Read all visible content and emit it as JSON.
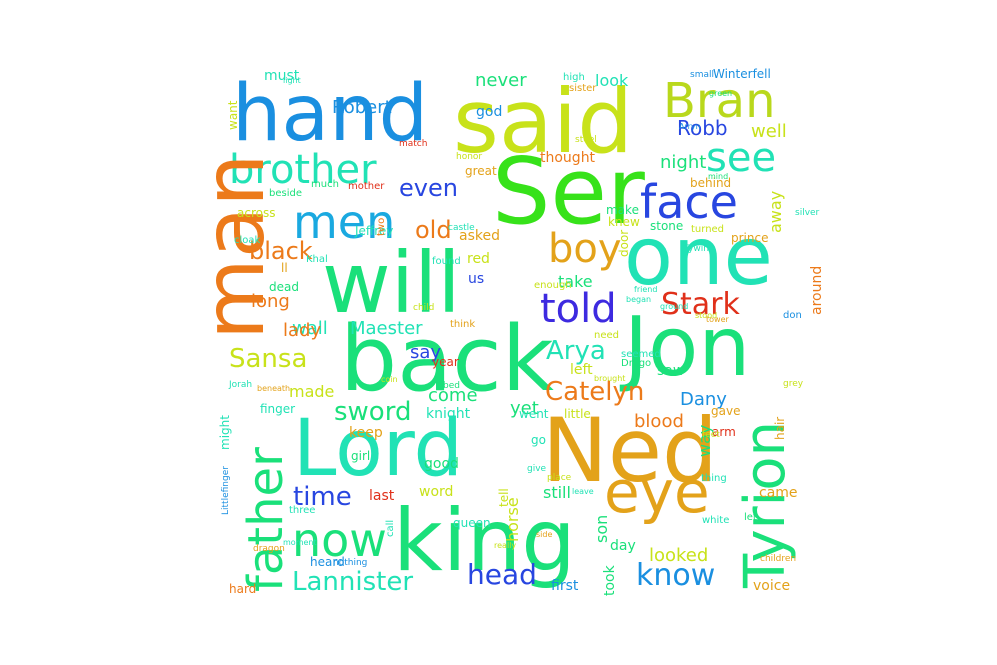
{
  "words": [
    {
      "text": "hand",
      "color": "#1a8fe0"
    },
    {
      "text": "said",
      "color": "#c8e21a"
    },
    {
      "text": "Bran",
      "color": "#b9d81c"
    },
    {
      "text": "Ser",
      "color": "#37e21a"
    },
    {
      "text": "brother",
      "color": "#21e2b5"
    },
    {
      "text": "see",
      "color": "#21e2b5"
    },
    {
      "text": "face",
      "color": "#2846e0"
    },
    {
      "text": "men",
      "color": "#1aa9e0"
    },
    {
      "text": "man",
      "color": "#ec7a1a"
    },
    {
      "text": "one",
      "color": "#21e2b5"
    },
    {
      "text": "boy",
      "color": "#e3a21a"
    },
    {
      "text": "will",
      "color": "#1ae07a"
    },
    {
      "text": "told",
      "color": "#3d2ae0"
    },
    {
      "text": "Jon",
      "color": "#1ae07a"
    },
    {
      "text": "back",
      "color": "#1ae07a"
    },
    {
      "text": "Stark",
      "color": "#e0301a"
    },
    {
      "text": "father",
      "color": "#1ae07a"
    },
    {
      "text": "Tyrion",
      "color": "#1ae07a"
    },
    {
      "text": "Lord",
      "color": "#21e2b5"
    },
    {
      "text": "Ned",
      "color": "#e3a21a"
    },
    {
      "text": "king",
      "color": "#1ae07a"
    },
    {
      "text": "eye",
      "color": "#e3a21a"
    },
    {
      "text": "now",
      "color": "#1ae07a"
    },
    {
      "text": "Sansa",
      "color": "#c8e21a"
    },
    {
      "text": "Arya",
      "color": "#21e2b5"
    },
    {
      "text": "Catelyn",
      "color": "#ec7a1a"
    },
    {
      "text": "sword",
      "color": "#1ae07a"
    },
    {
      "text": "Lannister",
      "color": "#21e2b5"
    },
    {
      "text": "head",
      "color": "#2846e0"
    },
    {
      "text": "know",
      "color": "#1a8fe0"
    },
    {
      "text": "time",
      "color": "#2846e0"
    },
    {
      "text": "black",
      "color": "#ec7a1a"
    },
    {
      "text": "old",
      "color": "#ec7a1a"
    },
    {
      "text": "even",
      "color": "#2846e0"
    },
    {
      "text": "Robb",
      "color": "#2846e0"
    },
    {
      "text": "night",
      "color": "#1ae07a"
    },
    {
      "text": "well",
      "color": "#c8e21a"
    },
    {
      "text": "never",
      "color": "#1ae07a"
    },
    {
      "text": "look",
      "color": "#21e2b5"
    },
    {
      "text": "Robert",
      "color": "#1a8fe0"
    },
    {
      "text": "must",
      "color": "#21e2b5"
    },
    {
      "text": "god",
      "color": "#1a8fe0"
    },
    {
      "text": "thought",
      "color": "#ec7a1a"
    },
    {
      "text": "Dany",
      "color": "#1a8fe0"
    },
    {
      "text": "looked",
      "color": "#c8e21a"
    },
    {
      "text": "Maester",
      "color": "#21e2b5"
    },
    {
      "text": "wall",
      "color": "#21e2b5"
    },
    {
      "text": "lady",
      "color": "#ec7a1a"
    },
    {
      "text": "long",
      "color": "#ec7a1a"
    },
    {
      "text": "made",
      "color": "#c8e21a"
    },
    {
      "text": "come",
      "color": "#1ae07a"
    },
    {
      "text": "yet",
      "color": "#1ae07a"
    },
    {
      "text": "blood",
      "color": "#ec7a1a"
    },
    {
      "text": "say",
      "color": "#2846e0"
    },
    {
      "text": "take",
      "color": "#1ae07a"
    },
    {
      "text": "saw",
      "color": "#1ae07a"
    },
    {
      "text": "left",
      "color": "#c8e21a"
    },
    {
      "text": "away",
      "color": "#c8e21a"
    },
    {
      "text": "around",
      "color": "#ec7a1a"
    },
    {
      "text": "way",
      "color": "#1ae07a"
    },
    {
      "text": "asked",
      "color": "#e3a21a"
    },
    {
      "text": "knight",
      "color": "#21e2b5"
    },
    {
      "text": "keep",
      "color": "#e3a21a"
    },
    {
      "text": "good",
      "color": "#1ae07a"
    },
    {
      "text": "word",
      "color": "#c8e21a"
    },
    {
      "text": "still",
      "color": "#1ae07a"
    },
    {
      "text": "son",
      "color": "#1ae07a"
    },
    {
      "text": "day",
      "color": "#1ae07a"
    },
    {
      "text": "took",
      "color": "#1ae07a"
    },
    {
      "text": "horse",
      "color": "#c8e21a"
    },
    {
      "text": "last",
      "color": "#e0301a"
    },
    {
      "text": "voice",
      "color": "#e3a21a"
    },
    {
      "text": "came",
      "color": "#e3a21a"
    },
    {
      "text": "first",
      "color": "#1a8fe0"
    },
    {
      "text": "Winterfell",
      "color": "#1a8fe0"
    },
    {
      "text": "behind",
      "color": "#e3a21a"
    },
    {
      "text": "make",
      "color": "#1ae07a"
    },
    {
      "text": "knew",
      "color": "#c8e21a"
    },
    {
      "text": "door",
      "color": "#c8e21a"
    },
    {
      "text": "stone",
      "color": "#1ae07a"
    },
    {
      "text": "red",
      "color": "#c8e21a"
    },
    {
      "text": "us",
      "color": "#2846e0"
    },
    {
      "text": "dead",
      "color": "#1ae07a"
    },
    {
      "text": "Jeffrey",
      "color": "#21e2b5"
    },
    {
      "text": "across",
      "color": "#c8e21a"
    },
    {
      "text": "might",
      "color": "#21e2b5"
    },
    {
      "text": "finger",
      "color": "#21e2b5"
    },
    {
      "text": "want",
      "color": "#c8e21a"
    },
    {
      "text": "girl",
      "color": "#1ae07a"
    },
    {
      "text": "heard",
      "color": "#1a8fe0"
    },
    {
      "text": "great",
      "color": "#e3a21a"
    },
    {
      "text": "mother",
      "color": "#e0301a"
    },
    {
      "text": "arm",
      "color": "#e0301a"
    },
    {
      "text": "go",
      "color": "#21e2b5"
    },
    {
      "text": "went",
      "color": "#21e2b5"
    },
    {
      "text": "little",
      "color": "#c8e21a"
    },
    {
      "text": "hair",
      "color": "#e3a21a"
    },
    {
      "text": "gave",
      "color": "#e3a21a"
    },
    {
      "text": "prince",
      "color": "#e3a21a"
    },
    {
      "text": "queen",
      "color": "#21e2b5"
    },
    {
      "text": "tell",
      "color": "#c8e21a"
    },
    {
      "text": "hard",
      "color": "#ec7a1a"
    },
    {
      "text": "beside",
      "color": "#1ae07a"
    },
    {
      "text": "two",
      "color": "#ec7a1a"
    },
    {
      "text": "year",
      "color": "#e0301a"
    },
    {
      "text": "turned",
      "color": "#c8e21a"
    },
    {
      "text": "white",
      "color": "#21e2b5"
    },
    {
      "text": "three",
      "color": "#21e2b5"
    },
    {
      "text": "call",
      "color": "#21e2b5"
    },
    {
      "text": "Khal",
      "color": "#21e2b5"
    },
    {
      "text": "need",
      "color": "#c8e21a"
    },
    {
      "text": "think",
      "color": "#e3a21a"
    },
    {
      "text": "much",
      "color": "#1ae07a"
    },
    {
      "text": "high",
      "color": "#21e2b5"
    },
    {
      "text": "sister",
      "color": "#e3a21a"
    },
    {
      "text": "Drogo",
      "color": "#1ae07a"
    },
    {
      "text": "seemed",
      "color": "#21e2b5"
    },
    {
      "text": "enough",
      "color": "#c8e21a"
    },
    {
      "text": "found",
      "color": "#21e2b5"
    },
    {
      "text": "cloak",
      "color": "#21e2b5"
    },
    {
      "text": "thing",
      "color": "#21e2b5"
    },
    {
      "text": "let",
      "color": "#1ae07a"
    },
    {
      "text": "small",
      "color": "#1a8fe0"
    },
    {
      "text": "grey",
      "color": "#c8e21a"
    },
    {
      "text": "children",
      "color": "#e3a21a"
    },
    {
      "text": "dragon",
      "color": "#e3a21a"
    },
    {
      "text": "feet",
      "color": "#c8e21a"
    },
    {
      "text": "match",
      "color": "#e0301a"
    },
    {
      "text": "honor",
      "color": "#c8e21a"
    },
    {
      "text": "light",
      "color": "#21e2b5"
    },
    {
      "text": "Littlefinger",
      "color": "#1a8fe0"
    },
    {
      "text": "nothing",
      "color": "#1a8fe0"
    },
    {
      "text": "moment",
      "color": "#21e2b5"
    },
    {
      "text": "place",
      "color": "#c8e21a"
    },
    {
      "text": "give",
      "color": "#21e2b5"
    },
    {
      "text": "child",
      "color": "#c8e21a"
    },
    {
      "text": "leave",
      "color": "#21e2b5"
    },
    {
      "text": "ll",
      "color": "#e3a21a"
    },
    {
      "text": "Jorah",
      "color": "#21e2b5"
    },
    {
      "text": "silver",
      "color": "#21e2b5"
    },
    {
      "text": "bed",
      "color": "#1ae07a"
    },
    {
      "text": "steel",
      "color": "#c8e21a"
    },
    {
      "text": "castle",
      "color": "#21e2b5"
    },
    {
      "text": "side",
      "color": "#e3a21a"
    },
    {
      "text": "mind",
      "color": "#1ae07a"
    },
    {
      "text": "Arryn",
      "color": "#1a8fe0"
    },
    {
      "text": "green",
      "color": "#1ae07a"
    },
    {
      "text": "began",
      "color": "#21e2b5"
    },
    {
      "text": "brought",
      "color": "#c8e21a"
    },
    {
      "text": "Tywin",
      "color": "#21e2b5"
    },
    {
      "text": "beneath",
      "color": "#e3a21a"
    },
    {
      "text": "tower",
      "color": "#e3a21a"
    },
    {
      "text": "coin",
      "color": "#c8e21a"
    },
    {
      "text": "stood",
      "color": "#c8e21a"
    },
    {
      "text": "don",
      "color": "#1a8fe0"
    },
    {
      "text": "friend",
      "color": "#21e2b5"
    },
    {
      "text": "ground",
      "color": "#21e2b5"
    },
    {
      "text": "really",
      "color": "#c8e21a"
    }
  ]
}
